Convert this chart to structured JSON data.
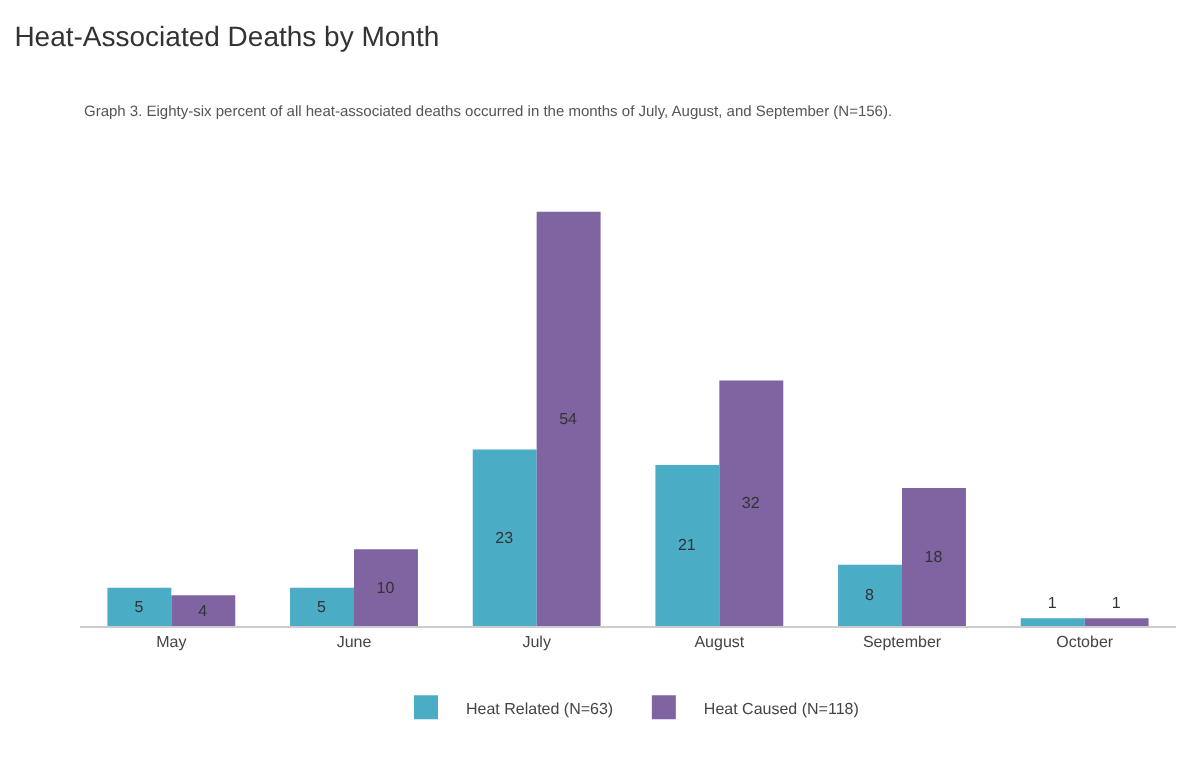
{
  "chart_data": {
    "type": "bar",
    "title": "Heat-Associated Deaths by Month",
    "subtitle": "Graph 3. Eighty-six percent of all heat-associated deaths occurred in the months of July, August, and September (N=156).",
    "categories": [
      "May",
      "June",
      "July",
      "August",
      "September",
      "October"
    ],
    "series": [
      {
        "name": "Heat Related (N=63)",
        "color": "#4bacc6",
        "values": [
          5,
          5,
          23,
          21,
          8,
          1
        ]
      },
      {
        "name": "Heat Caused (N=118)",
        "color": "#8064a2",
        "values": [
          4,
          10,
          54,
          32,
          18,
          1
        ]
      }
    ],
    "data_labels": true,
    "legend": "bottom"
  }
}
